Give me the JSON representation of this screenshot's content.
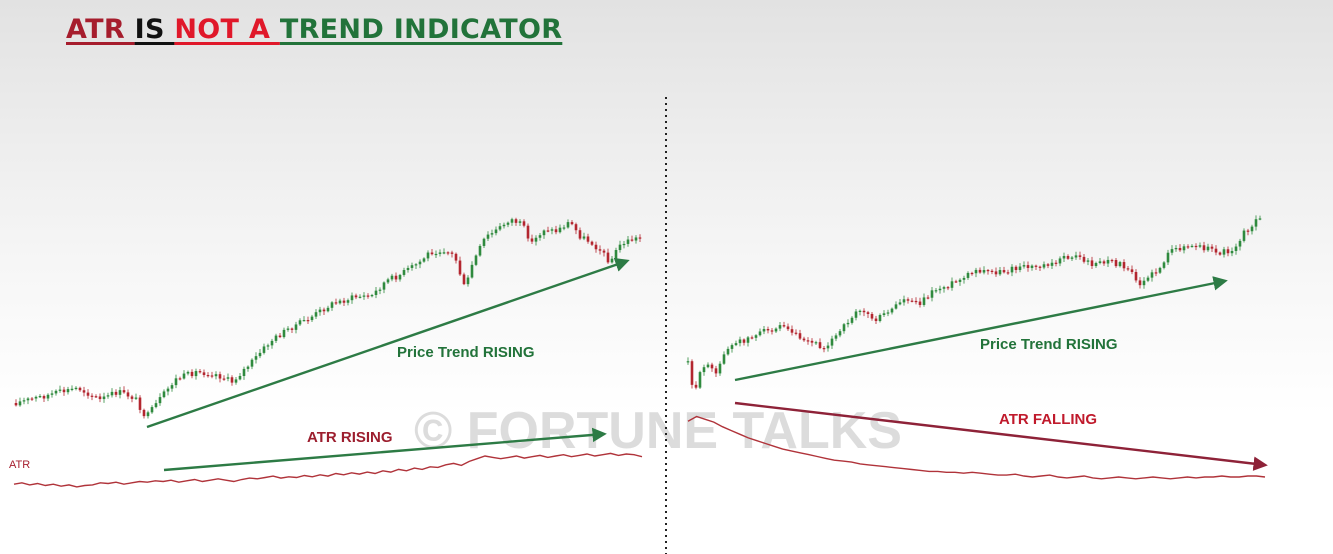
{
  "title": {
    "part1": "ATR ",
    "part2": "IS ",
    "part3": "NOT A ",
    "part4": "TREND INDICATOR"
  },
  "colors": {
    "title_atr": "#a61d2d",
    "title_is": "#111111",
    "title_not_a": "#e0182a",
    "title_trend": "#22733a",
    "up_candle": "#2f8a3e",
    "down_candle": "#b3262f",
    "atr_line": "#b0333a",
    "green_arrow": "#2d7b45",
    "red_arrow": "#8e2238",
    "watermark": "#d9d9d9"
  },
  "watermark": "© FORTUNE TALKS",
  "chart_data": [
    {
      "panel": "left",
      "type": "line",
      "series": [
        {
          "name": "ATR",
          "y": [
            46,
            48,
            45,
            47,
            44,
            46,
            43,
            45,
            42,
            44,
            45,
            48,
            47,
            49,
            46,
            48,
            50,
            49,
            51,
            50,
            52,
            49,
            51,
            53,
            50,
            52,
            54,
            52,
            50,
            53,
            55,
            54,
            56,
            58,
            55,
            57,
            56,
            59,
            57,
            60,
            58,
            62,
            60,
            63,
            61,
            64,
            62,
            66,
            64,
            68,
            66,
            70,
            68,
            72,
            71,
            75,
            77,
            74,
            80,
            84,
            88,
            86,
            84,
            86,
            88,
            85,
            87,
            89,
            86,
            88,
            90,
            87,
            89,
            91,
            88,
            90,
            92,
            89,
            91,
            90,
            87
          ]
        }
      ],
      "annotations": [
        {
          "label": "Price Trend RISING",
          "direction": "up"
        },
        {
          "label": "ATR RISING",
          "direction": "up"
        }
      ],
      "ylabel": "ATR"
    },
    {
      "panel": "right",
      "type": "line",
      "series": [
        {
          "name": "ATR",
          "y": [
            88,
            93,
            90,
            87,
            82,
            78,
            74,
            70,
            67,
            64,
            61,
            58,
            56,
            54,
            52,
            50,
            48,
            46,
            45,
            44,
            42,
            41,
            40,
            39,
            38,
            37,
            36,
            35,
            34,
            34,
            33,
            33,
            32,
            33,
            32,
            31,
            30,
            30,
            31,
            29,
            28,
            29,
            30,
            28,
            27,
            28,
            29,
            27,
            26,
            27,
            28,
            27,
            26,
            27,
            28,
            27,
            26,
            27,
            28,
            27,
            28,
            28,
            29,
            28,
            28,
            29,
            29,
            28
          ]
        }
      ],
      "annotations": [
        {
          "label": "Price Trend RISING",
          "direction": "up"
        },
        {
          "label": "ATR FALLING",
          "direction": "down"
        }
      ]
    }
  ]
}
